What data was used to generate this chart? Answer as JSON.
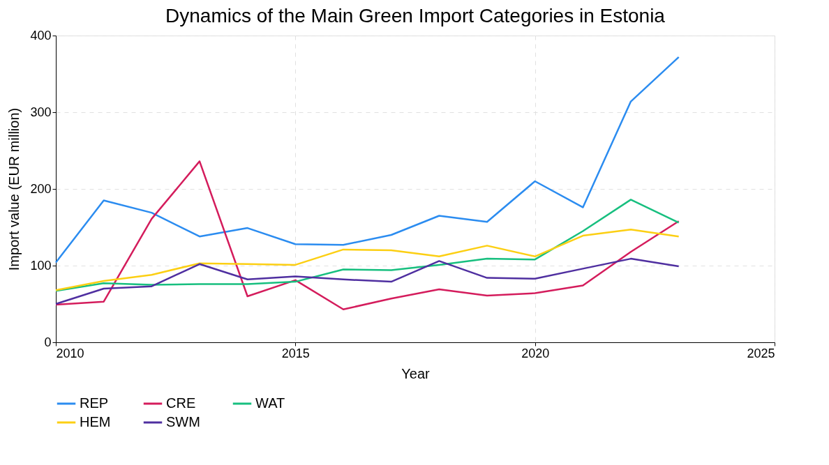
{
  "chart_data": {
    "type": "line",
    "title": "Dynamics of the Main Green Import Categories in Estonia",
    "xlabel": "Year",
    "ylabel": "Import value (EUR million)",
    "x": [
      2010,
      2011,
      2012,
      2013,
      2014,
      2015,
      2016,
      2017,
      2018,
      2019,
      2020,
      2021,
      2022,
      2023
    ],
    "series": [
      {
        "name": "REP",
        "color": "#2b8cf0",
        "values": [
          104,
          185,
          169,
          138,
          149,
          128,
          127,
          140,
          165,
          157,
          210,
          176,
          314,
          372
        ]
      },
      {
        "name": "CRE",
        "color": "#d41c5c",
        "values": [
          49,
          53,
          161,
          236,
          60,
          81,
          43,
          57,
          69,
          61,
          64,
          74,
          118,
          158
        ]
      },
      {
        "name": "WAT",
        "color": "#17bf7f",
        "values": [
          67,
          77,
          75,
          76,
          76,
          79,
          95,
          94,
          101,
          109,
          108,
          145,
          186,
          156
        ]
      },
      {
        "name": "HEM",
        "color": "#fccf13",
        "values": [
          68,
          80,
          88,
          103,
          102,
          101,
          121,
          120,
          112,
          126,
          112,
          139,
          147,
          138
        ]
      },
      {
        "name": "SWM",
        "color": "#4f2fa0",
        "values": [
          50,
          70,
          73,
          102,
          82,
          86,
          82,
          79,
          106,
          84,
          83,
          96,
          109,
          99
        ]
      }
    ],
    "xlim": [
      2010,
      2025
    ],
    "xticks": [
      2010,
      2015,
      2020,
      2025
    ],
    "ylim": [
      0,
      400
    ],
    "yticks": [
      0,
      100,
      200,
      300,
      400
    ],
    "grid": true,
    "legend": "bottom",
    "marker": "none",
    "line_style": "solid"
  }
}
